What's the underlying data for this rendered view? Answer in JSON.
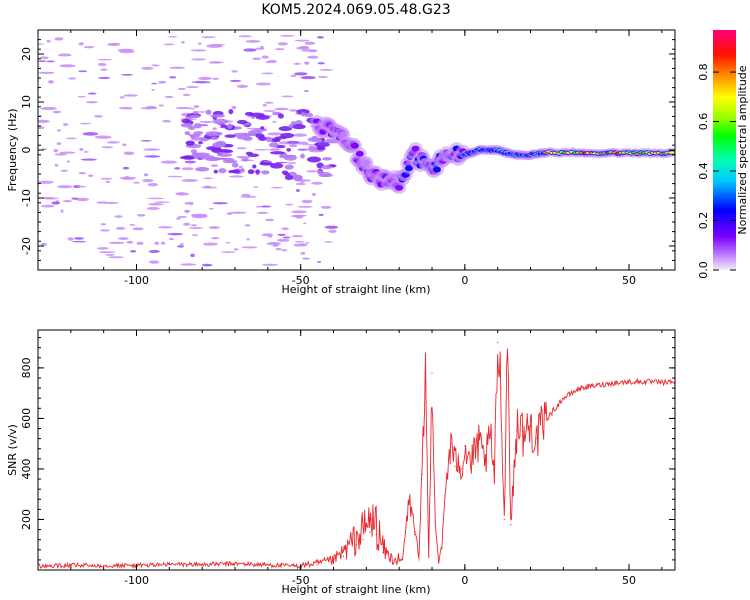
{
  "title": "KOM5.2024.069.05.48.G23",
  "chart_data": [
    {
      "type": "heatmap",
      "xlabel": "Height of straight line (km)",
      "ylabel": "Frequency (Hz)",
      "xlim": [
        -130,
        64
      ],
      "ylim": [
        -25,
        25
      ],
      "x_ticks": [
        -100,
        -50,
        0,
        50
      ],
      "y_ticks": [
        -20,
        -10,
        0,
        10,
        20
      ],
      "colorbar": {
        "label": "Normalized spectral amplitude",
        "range": [
          0,
          0.97
        ],
        "ticks": [
          0.0,
          0.2,
          0.4,
          0.6,
          0.8
        ]
      },
      "ridge": [
        {
          "x": -45,
          "f": 5.5
        },
        {
          "x": -40,
          "f": 4.5
        },
        {
          "x": -35,
          "f": 1.5
        },
        {
          "x": -30,
          "f": -4
        },
        {
          "x": -25,
          "f": -6
        },
        {
          "x": -20,
          "f": -6.5
        },
        {
          "x": -15,
          "f": -1
        },
        {
          "x": -10,
          "f": -4
        },
        {
          "x": -5,
          "f": -1
        },
        {
          "x": 0,
          "f": -1
        },
        {
          "x": 5,
          "f": 0
        },
        {
          "x": 10,
          "f": 0
        },
        {
          "x": 15,
          "f": -1
        },
        {
          "x": 20,
          "f": -1
        },
        {
          "x": 25,
          "f": -0.5
        },
        {
          "x": 35,
          "f": -0.6
        },
        {
          "x": 45,
          "f": -0.6
        },
        {
          "x": 55,
          "f": -0.7
        },
        {
          "x": 64,
          "f": -0.6
        }
      ]
    },
    {
      "type": "line",
      "xlabel": "Height of straight line (km)",
      "ylabel": "SNR (v/v)",
      "xlim": [
        -130,
        64
      ],
      "ylim": [
        0,
        950
      ],
      "x_ticks": [
        -100,
        -50,
        0,
        50
      ],
      "y_ticks": [
        200,
        400,
        600,
        800
      ],
      "line_color": "#e8282d",
      "series": [
        {
          "x": [
            -130,
            -120,
            -110,
            -100,
            -90,
            -80,
            -70,
            -60,
            -50,
            -45,
            -40,
            -37,
            -33,
            -31,
            -29,
            -27,
            -25,
            -23,
            -21,
            -19,
            -17,
            -15,
            -14,
            -13,
            -12,
            -11,
            -10,
            -9,
            -8,
            -7,
            -6,
            -5,
            -4,
            -3,
            -2,
            -1,
            0,
            2,
            4,
            6,
            8,
            9,
            10,
            11,
            12,
            13,
            14,
            16,
            18,
            20,
            22,
            25,
            30,
            35,
            40,
            45,
            50,
            55,
            60,
            64
          ],
          "y": [
            15,
            18,
            18,
            18,
            22,
            22,
            25,
            20,
            15,
            20,
            30,
            55,
            100,
            120,
            150,
            140,
            70,
            40,
            30,
            40,
            280,
            150,
            40,
            380,
            800,
            50,
            780,
            190,
            30,
            90,
            300,
            440,
            500,
            410,
            460,
            400,
            490,
            420,
            500,
            430,
            520,
            350,
            900,
            720,
            200,
            950,
            180,
            600,
            530,
            570,
            520,
            600,
            680,
            720,
            730,
            740,
            745,
            745,
            742,
            745
          ]
        }
      ]
    }
  ]
}
